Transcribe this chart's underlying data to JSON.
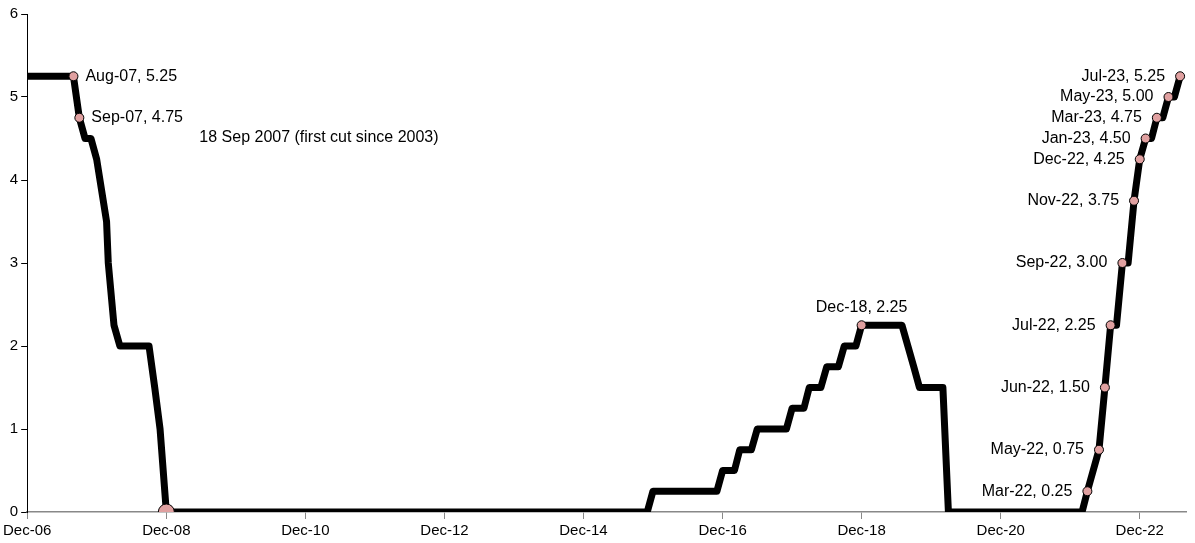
{
  "chart_data": {
    "type": "line",
    "x": [
      "2006-12",
      "2007-08",
      "2007-09",
      "2007-10",
      "2007-11",
      "2007-12",
      "2008-01-22",
      "2008-01-31",
      "2008-02",
      "2008-03",
      "2008-04",
      "2008-09",
      "2008-10",
      "2008-10-29",
      "2008-11",
      "2008-12",
      "2015-11",
      "2015-12",
      "2016-11",
      "2016-12",
      "2017-02",
      "2017-03",
      "2017-05",
      "2017-06",
      "2017-11",
      "2017-12",
      "2018-02",
      "2018-03",
      "2018-05",
      "2018-06",
      "2018-08",
      "2018-09",
      "2018-11",
      "2018-12",
      "2019-07",
      "2019-08",
      "2019-09",
      "2019-10",
      "2020-02",
      "2020-03",
      "2022-02",
      "2022-03",
      "2022-05",
      "2022-06",
      "2022-07",
      "2022-08",
      "2022-09",
      "2022-10",
      "2022-11",
      "2022-12",
      "2023-01",
      "2023-02",
      "2023-03",
      "2023-04",
      "2023-05",
      "2023-06",
      "2023-07"
    ],
    "series": [
      {
        "color": "#000000",
        "marker": "none",
        "values": [
          5.25,
          5.25,
          4.75,
          4.5,
          4.5,
          4.25,
          3.5,
          3.0,
          3.0,
          2.25,
          2.0,
          2.0,
          1.5,
          1.0,
          1.0,
          0,
          0,
          0.25,
          0.25,
          0.5,
          0.5,
          0.75,
          0.75,
          1.0,
          1.0,
          1.25,
          1.25,
          1.5,
          1.5,
          1.75,
          1.75,
          2.0,
          2.0,
          2.25,
          2.25,
          2.0,
          1.75,
          1.5,
          1.5,
          0,
          0,
          0.25,
          0.75,
          1.5,
          2.25,
          2.25,
          3.0,
          3.0,
          3.75,
          4.25,
          4.5,
          4.5,
          4.75,
          4.75,
          5.0,
          5.0,
          5.25
        ]
      },
      {
        "type": "scatter",
        "color": "#e0a0a0",
        "marker": "circle",
        "x": [
          "2007-08",
          "2007-09",
          "2018-12",
          "2022-03",
          "2022-05",
          "2022-06",
          "2022-07",
          "2022-09",
          "2022-11",
          "2022-12",
          "2023-01",
          "2023-03",
          "2023-05",
          "2023-07"
        ],
        "values": [
          5.25,
          4.75,
          2.25,
          0.25,
          0.75,
          1.5,
          2.25,
          3.0,
          3.75,
          4.25,
          4.5,
          4.75,
          5.0,
          5.25
        ]
      },
      {
        "type": "scatter",
        "color": "#e0a0a0",
        "marker": "circle",
        "x": [
          "2008-12"
        ],
        "values": [
          0
        ]
      }
    ],
    "xlim": [
      "2006-12",
      "2023-08"
    ],
    "xticks": [
      {
        "value": "2006-12",
        "label": "Dec-06"
      },
      {
        "value": "2008-12",
        "label": "Dec-08"
      },
      {
        "value": "2010-12",
        "label": "Dec-10"
      },
      {
        "value": "2012-12",
        "label": "Dec-12"
      },
      {
        "value": "2014-12",
        "label": "Dec-14"
      },
      {
        "value": "2016-12",
        "label": "Dec-16"
      },
      {
        "value": "2018-12",
        "label": "Dec-18"
      },
      {
        "value": "2020-12",
        "label": "Dec-20"
      },
      {
        "value": "2022-12",
        "label": "Dec-22"
      }
    ],
    "ylim": [
      0,
      6
    ],
    "yticks": [
      0,
      1,
      2,
      3,
      4,
      5,
      6
    ],
    "grid": false,
    "legend": false,
    "annotations": [
      {
        "text": "Aug-07, 5.25",
        "x": "2007-08",
        "y": 5.25
      },
      {
        "text": "Sep-07, 4.75",
        "x": "2007-09",
        "y": 4.75
      },
      "18 Sep 2007 (first cut since 2003)",
      {
        "text": "Dec-18, 2.25",
        "x": "2018-12",
        "y": 2.25
      },
      {
        "text": "Mar-22, 0.25",
        "x": "2022-03",
        "y": 0.25
      },
      {
        "text": "May-22, 0.75",
        "x": "2022-05",
        "y": 0.75
      },
      {
        "text": "Jun-22, 1.50",
        "x": "2022-06",
        "y": 1.5
      },
      {
        "text": "Jul-22, 2.25",
        "x": "2022-07",
        "y": 2.25
      },
      {
        "text": "Sep-22, 3.00",
        "x": "2022-09",
        "y": 3.0
      },
      {
        "text": "Nov-22, 3.75",
        "x": "2022-11",
        "y": 3.75
      },
      {
        "text": "Dec-22, 4.25",
        "x": "2022-12",
        "y": 4.25
      },
      {
        "text": "Jan-23, 4.50",
        "x": "2023-01",
        "y": 4.5
      },
      {
        "text": "Mar-23, 4.75",
        "x": "2023-03",
        "y": 4.75
      },
      {
        "text": "May-23, 5.00",
        "x": "2023-05",
        "y": 5.0
      },
      {
        "text": "Jul-23, 5.25",
        "x": "2023-07",
        "y": 5.25
      }
    ]
  }
}
